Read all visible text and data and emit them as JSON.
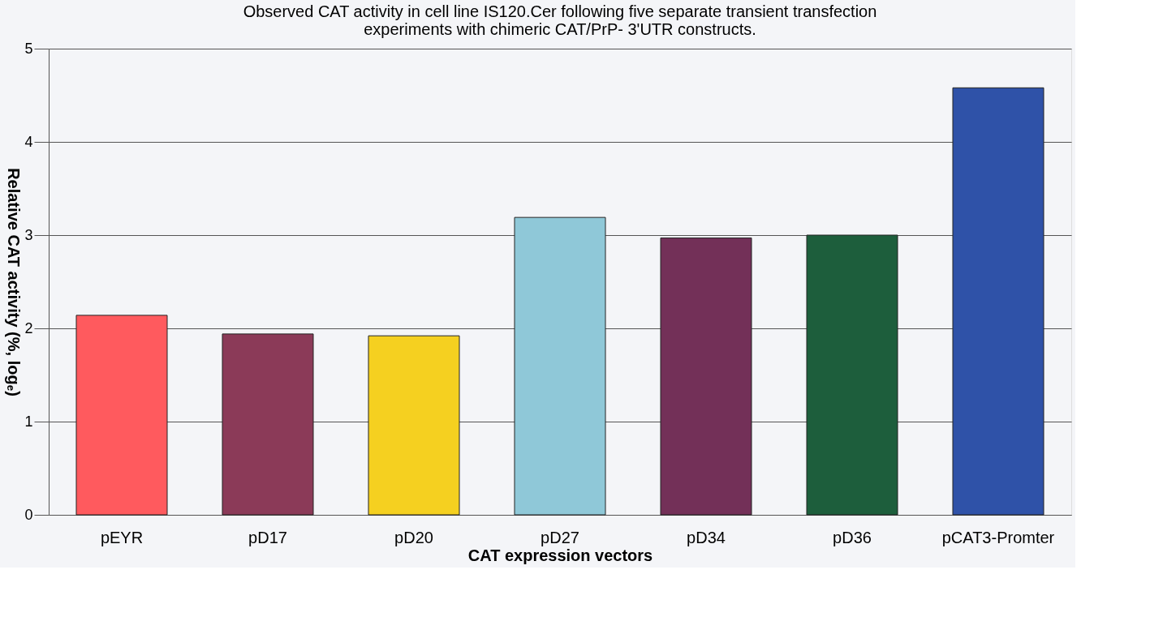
{
  "chart_data": {
    "type": "bar",
    "title": [
      "Observed CAT activity in cell line IS120.Cer following five separate transient transfection",
      "experiments with chimeric CAT/PrP- 3'UTR constructs."
    ],
    "xlabel": "CAT expression vectors",
    "ylabel": "Relative CAT activity (%, logₑ)",
    "categories": [
      "pEYR",
      "pD17",
      "pD20",
      "pD27",
      "pD34",
      "pD36",
      "pCAT3-Promter"
    ],
    "values": [
      2.14,
      1.94,
      1.92,
      3.19,
      2.97,
      3.0,
      4.58
    ],
    "colors": [
      "#ff5a5e",
      "#8b3a58",
      "#f5d020",
      "#8fc8d8",
      "#733058",
      "#1d5e3c",
      "#2f52a8"
    ],
    "ylim": [
      0,
      5
    ],
    "yticks": [
      0,
      1,
      2,
      3,
      4,
      5
    ],
    "grid": "y"
  }
}
